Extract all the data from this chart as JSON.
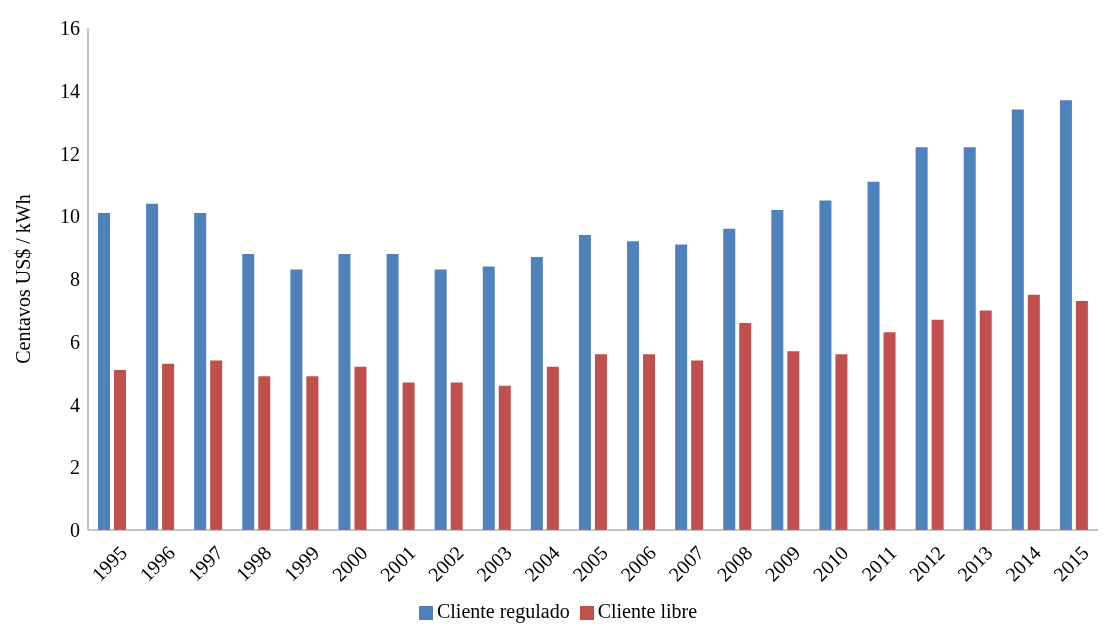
{
  "chart_data": {
    "type": "bar",
    "ylabel": "Centavos US$ / kWh",
    "categories": [
      "1995",
      "1996",
      "1997",
      "1998",
      "1999",
      "2000",
      "2001",
      "2002",
      "2003",
      "2004",
      "2005",
      "2006",
      "2007",
      "2008",
      "2009",
      "2010",
      "2011",
      "2012",
      "2013",
      "2014",
      "2015"
    ],
    "series": [
      {
        "name": "Cliente regulado",
        "color": "#4f81bd",
        "values": [
          10.1,
          10.4,
          10.1,
          8.8,
          8.3,
          8.8,
          8.8,
          8.3,
          8.4,
          8.7,
          9.4,
          9.2,
          9.1,
          9.6,
          10.2,
          10.5,
          11.1,
          12.2,
          12.2,
          13.4,
          13.7
        ]
      },
      {
        "name": "Cliente libre",
        "color": "#c0504d",
        "values": [
          5.1,
          5.3,
          5.4,
          4.9,
          4.9,
          5.2,
          4.7,
          4.7,
          4.6,
          5.2,
          5.6,
          5.6,
          5.4,
          6.6,
          5.7,
          5.6,
          6.3,
          6.7,
          7.0,
          7.5,
          7.3
        ]
      }
    ],
    "ylim": [
      0,
      16
    ],
    "yticks": [
      0,
      2,
      4,
      6,
      8,
      10,
      12,
      14,
      16
    ],
    "grid": false,
    "legend": "bottom"
  }
}
